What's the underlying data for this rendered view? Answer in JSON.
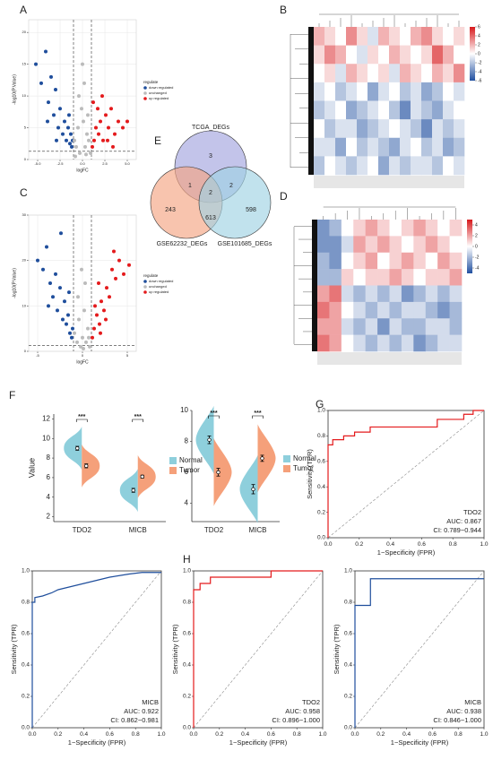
{
  "chart_data": [
    {
      "panel": "A",
      "type": "scatter",
      "xlabel": "logFC",
      "ylabel": "-log10(P.Value)",
      "legend_title": "regulate",
      "xlim": [
        -6,
        6
      ],
      "ylim": [
        0,
        22
      ],
      "xticks": [
        {
          "value": -5,
          "label": "-5.0"
        },
        {
          "value": -2.5,
          "label": "-2.5"
        },
        {
          "value": 0,
          "label": "0.0"
        },
        {
          "value": 2.5,
          "label": "2.5"
        },
        {
          "value": 5,
          "label": "5.0"
        }
      ],
      "yticks": [
        0,
        5,
        10,
        15,
        20
      ],
      "grid": true,
      "thresholds": {
        "x": [
          -1,
          1
        ],
        "y": 1.3
      },
      "series": [
        {
          "name": "down regulated",
          "color": "#1f4e9c",
          "x": [
            -5.2,
            -4.6,
            -4.1,
            -3.8,
            -3.5,
            -3.2,
            -3.0,
            -2.7,
            -2.5,
            -2.2,
            -2.0,
            -1.8,
            -1.6,
            -1.4,
            -1.3,
            -1.2,
            -1.1,
            -3.9,
            -2.9,
            -1.5
          ],
          "values": [
            15,
            12,
            17,
            9,
            13,
            7,
            11,
            5,
            8,
            4,
            6,
            3,
            5,
            2.5,
            4,
            2,
            3,
            6,
            3,
            7
          ]
        },
        {
          "name": "unchanged",
          "color": "#bbbbbb",
          "x": [
            -0.9,
            -0.7,
            -0.5,
            -0.3,
            -0.1,
            0.1,
            0.3,
            0.5,
            0.7,
            0.9,
            -0.4,
            0.2,
            0.6,
            -0.8,
            0.0,
            0.4
          ],
          "values": [
            3,
            2,
            5,
            1,
            8,
            6,
            2,
            4,
            3,
            1,
            10,
            12,
            7,
            0.5,
            15,
            0.8
          ]
        },
        {
          "name": "up regulated",
          "color": "#e41a1c",
          "x": [
            1.1,
            1.3,
            1.5,
            1.8,
            2.0,
            2.3,
            2.6,
            2.9,
            3.2,
            3.6,
            4.0,
            4.5,
            1.2,
            1.7,
            2.2,
            2.8,
            3.4,
            5.0
          ],
          "values": [
            2,
            3,
            5,
            4,
            6,
            3,
            7,
            5,
            8,
            4,
            6,
            5,
            9,
            8,
            10,
            3,
            2,
            6
          ]
        }
      ]
    },
    {
      "panel": "B",
      "type": "heatmap",
      "clim": [
        -6,
        6
      ],
      "cticks": [
        6,
        4,
        2,
        0,
        -2,
        -4,
        -6
      ],
      "values": [
        [
          2,
          1,
          0,
          3,
          1,
          -1,
          2,
          1,
          0,
          2,
          3,
          1,
          0,
          1
        ],
        [
          1,
          3,
          2,
          0,
          -1,
          1,
          0,
          2,
          1,
          0,
          1,
          4,
          2,
          0
        ],
        [
          0,
          1,
          -1,
          2,
          1,
          0,
          1,
          -1,
          2,
          1,
          0,
          2,
          1,
          3
        ],
        [
          -1,
          0,
          -2,
          -1,
          0,
          -3,
          -1,
          0,
          -2,
          -1,
          -3,
          -2,
          0,
          -1
        ],
        [
          -2,
          -1,
          0,
          -3,
          -2,
          -1,
          0,
          -2,
          -4,
          -1,
          -2,
          -3,
          -1,
          0
        ],
        [
          0,
          -2,
          -1,
          -1,
          -3,
          -2,
          -1,
          0,
          -1,
          -2,
          -4,
          -1,
          -2,
          -1
        ],
        [
          -1,
          -1,
          -3,
          0,
          -2,
          -1,
          -2,
          -3,
          -1,
          0,
          -2,
          -1,
          -3,
          -2
        ],
        [
          -2,
          0,
          -1,
          -2,
          -1,
          0,
          -3,
          -1,
          -2,
          -1,
          -1,
          -2,
          0,
          -1
        ]
      ]
    },
    {
      "panel": "C",
      "type": "scatter",
      "xlabel": "logFC",
      "ylabel": "-log10(P.Value)",
      "legend_title": "regulate",
      "xlim": [
        -6,
        6
      ],
      "ylim": [
        0,
        30
      ],
      "xticks": [
        -5,
        0,
        5
      ],
      "yticks": [
        0,
        10,
        20,
        30
      ],
      "grid": true,
      "thresholds": {
        "x": [
          -1,
          1
        ],
        "y": 1.3
      },
      "series": [
        {
          "name": "down regulated",
          "color": "#1f4e9c",
          "x": [
            -5.0,
            -4.4,
            -4.0,
            -3.6,
            -3.3,
            -3.0,
            -2.8,
            -2.5,
            -2.2,
            -2.0,
            -1.8,
            -1.6,
            -1.4,
            -1.2,
            -1.1,
            -2.4,
            -3.8,
            -1.5
          ],
          "values": [
            20,
            18,
            23,
            15,
            12,
            17,
            9,
            14,
            7,
            11,
            6,
            8,
            4,
            3,
            5,
            26,
            10,
            13
          ]
        },
        {
          "name": "unchanged",
          "color": "#bbbbbb",
          "x": [
            -0.9,
            -0.6,
            -0.4,
            -0.2,
            0.0,
            0.2,
            0.4,
            0.6,
            0.8,
            -0.5,
            0.3,
            0.7,
            -0.1,
            0.1
          ],
          "values": [
            4,
            2,
            7,
            1,
            3,
            9,
            2,
            5,
            1,
            12,
            15,
            3,
            18,
            0.6
          ]
        },
        {
          "name": "up regulated",
          "color": "#e41a1c",
          "x": [
            1.1,
            1.3,
            1.6,
            1.9,
            2.1,
            2.4,
            2.7,
            3.0,
            3.3,
            3.7,
            4.1,
            4.6,
            1.4,
            2.0,
            2.6,
            3.5,
            1.8,
            5.2
          ],
          "values": [
            3,
            5,
            8,
            6,
            11,
            9,
            14,
            12,
            18,
            16,
            20,
            17,
            10,
            4,
            7,
            22,
            15,
            19
          ]
        }
      ]
    },
    {
      "panel": "D",
      "type": "heatmap",
      "clim": [
        -5,
        5
      ],
      "cticks": [
        4,
        2,
        0,
        -2,
        -4
      ],
      "values": [
        [
          -3,
          -2,
          0,
          1,
          2,
          1,
          0,
          1,
          2,
          1,
          0,
          1
        ],
        [
          -3,
          -3,
          -1,
          2,
          1,
          2,
          1,
          0,
          1,
          2,
          1,
          0
        ],
        [
          -2,
          -3,
          0,
          1,
          2,
          0,
          1,
          2,
          1,
          0,
          2,
          1
        ],
        [
          -2,
          -2,
          1,
          0,
          1,
          1,
          2,
          1,
          0,
          1,
          1,
          2
        ],
        [
          2,
          3,
          -1,
          -2,
          -1,
          -2,
          -1,
          -3,
          -2,
          -1,
          -2,
          -1
        ],
        [
          3,
          2,
          0,
          -1,
          -2,
          -1,
          -2,
          -1,
          -1,
          -2,
          -3,
          -2
        ],
        [
          2,
          2,
          -1,
          -2,
          -1,
          -3,
          -1,
          -2,
          -2,
          -1,
          -1,
          -2
        ],
        [
          3,
          2,
          0,
          -1,
          -2,
          -1,
          -2,
          -1,
          -3,
          -2,
          -1,
          -1
        ]
      ]
    },
    {
      "panel": "E",
      "type": "venn",
      "sets": [
        "TCGA_DEGs",
        "GSE62232_DEGs",
        "GSE101685_DEGs"
      ],
      "colors": [
        "#a3a4de",
        "#f4a582",
        "#9fd3e3"
      ],
      "values": [
        3,
        1,
        2,
        2,
        243,
        613,
        598
      ]
    },
    {
      "panel": "F",
      "type": "violin",
      "ylabel": "Value",
      "categories": [
        "TDO2",
        "MICB"
      ],
      "ylim": [
        1.5,
        12.5
      ],
      "yticks": [
        2,
        4,
        6,
        8,
        10,
        12
      ],
      "annotations": [
        "***",
        "***"
      ],
      "series": [
        {
          "name": "Normal",
          "color": "#8ecfdc",
          "values": [
            9.0,
            4.7
          ],
          "errors": [
            0.2,
            0.2
          ]
        },
        {
          "name": "Tumor",
          "color": "#f5a07a",
          "values": [
            7.2,
            6.1
          ],
          "errors": [
            0.2,
            0.15
          ]
        }
      ]
    },
    {
      "type": "violin",
      "categories": [
        "TDO2",
        "MICB"
      ],
      "ylim": [
        2.8,
        10
      ],
      "yticks": [
        4,
        6,
        8,
        10
      ],
      "annotations": [
        "***",
        "***"
      ],
      "series": [
        {
          "name": "Normal",
          "color": "#8ecfdc",
          "values": [
            8.1,
            4.9
          ],
          "errors": [
            0.25,
            0.3
          ]
        },
        {
          "name": "Tumor",
          "color": "#f5a07a",
          "values": [
            6.0,
            6.9
          ],
          "errors": [
            0.25,
            0.2
          ]
        }
      ]
    },
    {
      "panel": "G",
      "type": "line",
      "xlabel": "1−Specificity (FPR)",
      "ylabel": "Sensitivity (TPR)",
      "texts": [
        "TDO2",
        "AUC: 0.867",
        "CI: 0.789−0.944"
      ],
      "xlim": [
        0,
        1
      ],
      "ylim": [
        0,
        1
      ],
      "xticks": [
        {
          "value": 0,
          "label": "0.0"
        },
        {
          "value": 0.2,
          "label": "0.2"
        },
        {
          "value": 0.4,
          "label": "0.4"
        },
        {
          "value": 0.6,
          "label": "0.6"
        },
        {
          "value": 0.8,
          "label": "0.8"
        },
        {
          "value": 1,
          "label": "1.0"
        }
      ],
      "yticks": [
        {
          "value": 0,
          "label": "0.0"
        },
        {
          "value": 0.2,
          "label": "0.2"
        },
        {
          "value": 0.4,
          "label": "0.4"
        },
        {
          "value": 0.6,
          "label": "0.6"
        },
        {
          "value": 0.8,
          "label": "0.8"
        },
        {
          "value": 1,
          "label": "1.0"
        }
      ],
      "series": [
        {
          "color": "#e41a1c",
          "x": [
            0,
            0,
            0.03,
            0.03,
            0.1,
            0.1,
            0.17,
            0.17,
            0.27,
            0.27,
            0.7,
            0.7,
            0.87,
            0.87,
            0.93,
            0.93,
            1
          ],
          "values": [
            0,
            0.73,
            0.73,
            0.77,
            0.77,
            0.8,
            0.8,
            0.83,
            0.83,
            0.87,
            0.87,
            0.93,
            0.93,
            0.97,
            0.97,
            1,
            1
          ]
        }
      ]
    },
    {
      "type": "line",
      "xlabel": "1−Specificity (FPR)",
      "ylabel": "Sensitivity (TPR)",
      "texts": [
        "MICB",
        "AUC: 0.922",
        "CI: 0.862−0.981"
      ],
      "xlim": [
        0,
        1
      ],
      "ylim": [
        0,
        1
      ],
      "xticks": [
        {
          "value": 0,
          "label": "0.0"
        },
        {
          "value": 0.2,
          "label": "0.2"
        },
        {
          "value": 0.4,
          "label": "0.4"
        },
        {
          "value": 0.6,
          "label": "0.6"
        },
        {
          "value": 0.8,
          "label": "0.8"
        },
        {
          "value": 1,
          "label": "1.0"
        }
      ],
      "yticks": [
        {
          "value": 0,
          "label": "0.0"
        },
        {
          "value": 0.2,
          "label": "0.2"
        },
        {
          "value": 0.4,
          "label": "0.4"
        },
        {
          "value": 0.6,
          "label": "0.6"
        },
        {
          "value": 0.8,
          "label": "0.8"
        },
        {
          "value": 1,
          "label": "1.0"
        }
      ],
      "series": [
        {
          "color": "#1f4e9c",
          "x": [
            0,
            0,
            0.02,
            0.02,
            0.08,
            0.15,
            0.2,
            0.3,
            0.45,
            0.6,
            0.75,
            0.85,
            1
          ],
          "values": [
            0,
            0.8,
            0.8,
            0.83,
            0.84,
            0.86,
            0.88,
            0.9,
            0.93,
            0.96,
            0.98,
            0.99,
            0.99
          ]
        }
      ]
    },
    {
      "panel": "H",
      "type": "line",
      "xlabel": "1−Specificity (FPR)",
      "ylabel": "Sensitivity (TPR)",
      "texts": [
        "TDO2",
        "AUC: 0.958",
        "CI: 0.896−1.000"
      ],
      "xlim": [
        0,
        1
      ],
      "ylim": [
        0,
        1
      ],
      "xticks": [
        {
          "value": 0,
          "label": "0.0"
        },
        {
          "value": 0.2,
          "label": "0.2"
        },
        {
          "value": 0.4,
          "label": "0.4"
        },
        {
          "value": 0.6,
          "label": "0.6"
        },
        {
          "value": 0.8,
          "label": "0.8"
        },
        {
          "value": 1,
          "label": "1.0"
        }
      ],
      "yticks": [
        {
          "value": 0,
          "label": "0.0"
        },
        {
          "value": 0.2,
          "label": "0.2"
        },
        {
          "value": 0.4,
          "label": "0.4"
        },
        {
          "value": 0.6,
          "label": "0.6"
        },
        {
          "value": 0.8,
          "label": "0.8"
        },
        {
          "value": 1,
          "label": "1.0"
        }
      ],
      "series": [
        {
          "color": "#e41a1c",
          "x": [
            0,
            0,
            0.05,
            0.05,
            0.13,
            0.13,
            0.6,
            0.6,
            1
          ],
          "values": [
            0,
            0.88,
            0.88,
            0.92,
            0.92,
            0.96,
            0.96,
            1,
            1
          ]
        }
      ]
    },
    {
      "type": "line",
      "xlabel": "1−Specificity (FPR)",
      "ylabel": "Sensitivity (TPR)",
      "texts": [
        "MICB",
        "AUC: 0.938",
        "CI: 0.846−1.000"
      ],
      "xlim": [
        0,
        1
      ],
      "ylim": [
        0,
        1
      ],
      "xticks": [
        {
          "value": 0,
          "label": "0.0"
        },
        {
          "value": 0.2,
          "label": "0.2"
        },
        {
          "value": 0.4,
          "label": "0.4"
        },
        {
          "value": 0.6,
          "label": "0.6"
        },
        {
          "value": 0.8,
          "label": "0.8"
        },
        {
          "value": 1,
          "label": "1.0"
        }
      ],
      "yticks": [
        {
          "value": 0,
          "label": "0.0"
        },
        {
          "value": 0.2,
          "label": "0.2"
        },
        {
          "value": 0.4,
          "label": "0.4"
        },
        {
          "value": 0.6,
          "label": "0.6"
        },
        {
          "value": 0.8,
          "label": "0.8"
        },
        {
          "value": 1,
          "label": "1.0"
        }
      ],
      "series": [
        {
          "color": "#1f4e9c",
          "x": [
            0,
            0,
            0.12,
            0.12,
            1
          ],
          "values": [
            0,
            0.78,
            0.78,
            0.95,
            0.95
          ]
        }
      ]
    }
  ]
}
